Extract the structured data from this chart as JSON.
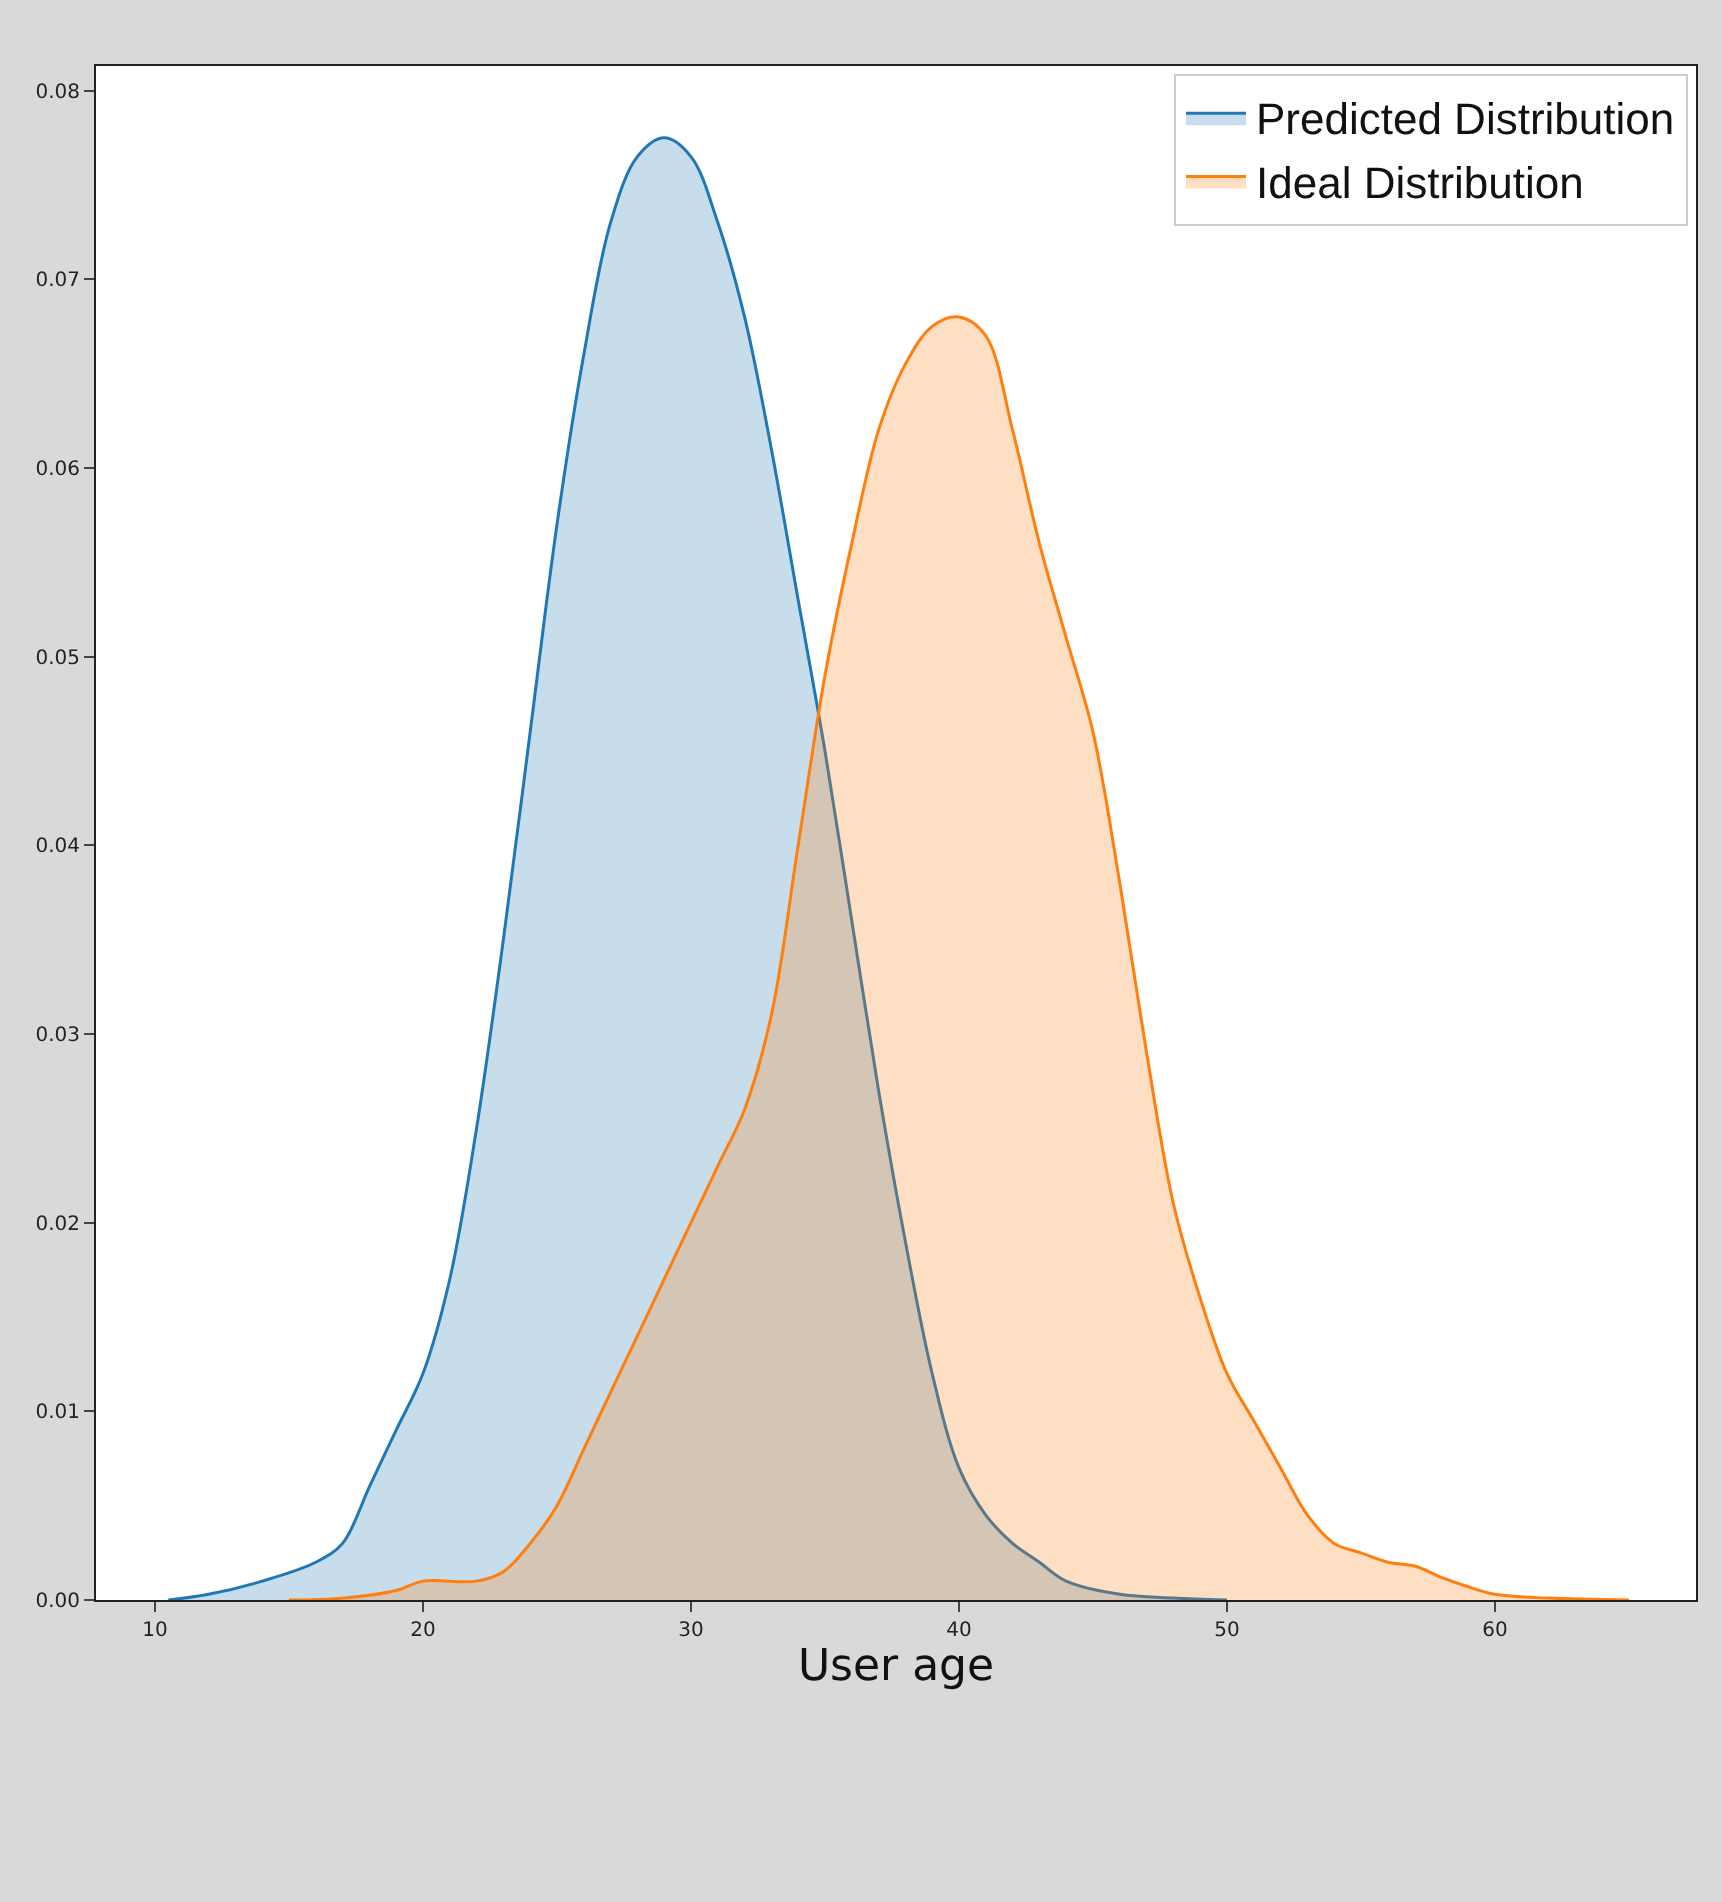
{
  "chart_data": {
    "type": "area",
    "xlabel": "User age",
    "series": [
      {
        "name": "Predicted Distribution",
        "color": "#1f77b4",
        "x": [
          10.5,
          12,
          14,
          16,
          17,
          18,
          19,
          20,
          21,
          22,
          23,
          24,
          25,
          26,
          27,
          28,
          29,
          30,
          31,
          32,
          33,
          34,
          35,
          36,
          37,
          38,
          39,
          40,
          41,
          42,
          43,
          44,
          46,
          48,
          50
        ],
        "values": [
          0,
          0.0003,
          0.001,
          0.002,
          0.003,
          0.006,
          0.009,
          0.012,
          0.017,
          0.025,
          0.035,
          0.046,
          0.057,
          0.066,
          0.073,
          0.0765,
          0.0775,
          0.0765,
          0.073,
          0.068,
          0.061,
          0.053,
          0.045,
          0.036,
          0.027,
          0.019,
          0.012,
          0.007,
          0.0045,
          0.003,
          0.002,
          0.001,
          0.0003,
          0.0001,
          0
        ]
      },
      {
        "name": "Ideal Distribution",
        "color": "#ff7f0e",
        "x": [
          15,
          17,
          19,
          20,
          22,
          23,
          24,
          25,
          26,
          27,
          28,
          29,
          30,
          31,
          32,
          33,
          34,
          35,
          36,
          37,
          38,
          39,
          40,
          41,
          42,
          43,
          44,
          45,
          46,
          47,
          48,
          49,
          50,
          51,
          52,
          53,
          54,
          55,
          56,
          57,
          58,
          59,
          60,
          62,
          65
        ],
        "values": [
          0,
          0.0001,
          0.0005,
          0.001,
          0.001,
          0.0015,
          0.003,
          0.005,
          0.008,
          0.011,
          0.014,
          0.017,
          0.02,
          0.023,
          0.026,
          0.031,
          0.04,
          0.049,
          0.056,
          0.062,
          0.0655,
          0.0675,
          0.068,
          0.067,
          0.062,
          0.056,
          0.051,
          0.046,
          0.038,
          0.029,
          0.021,
          0.016,
          0.012,
          0.0095,
          0.007,
          0.0045,
          0.003,
          0.0025,
          0.002,
          0.0018,
          0.0012,
          0.0007,
          0.0003,
          0.0001,
          0
        ]
      }
    ],
    "xlim": [
      7.8,
      67.5
    ],
    "xticks": [
      10,
      20,
      30,
      40,
      50,
      60
    ],
    "ylim": [
      0,
      0.0813
    ],
    "yticks": [
      {
        "value": 0,
        "label": "0.00"
      },
      {
        "value": 0.01,
        "label": "0.01"
      },
      {
        "value": 0.02,
        "label": "0.02"
      },
      {
        "value": 0.03,
        "label": "0.03"
      },
      {
        "value": 0.04,
        "label": "0.04"
      },
      {
        "value": 0.05,
        "label": "0.05"
      },
      {
        "value": 0.06,
        "label": "0.06"
      },
      {
        "value": 0.07,
        "label": "0.07"
      },
      {
        "value": 0.08,
        "label": "0.08"
      }
    ],
    "legend": "top right"
  }
}
